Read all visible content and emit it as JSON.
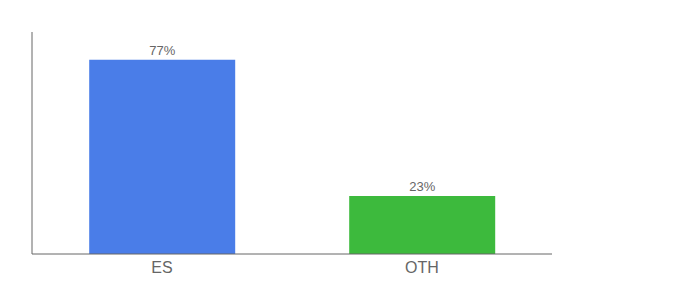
{
  "chart_data": {
    "type": "bar",
    "categories": [
      "ES",
      "OTH"
    ],
    "values": [
      77,
      23
    ],
    "value_labels": [
      "77%",
      "23%"
    ],
    "colors": [
      "#4a7de8",
      "#3dba3d"
    ],
    "ylim": [
      0,
      88
    ],
    "data_labels": true,
    "tick_labels": "x"
  }
}
